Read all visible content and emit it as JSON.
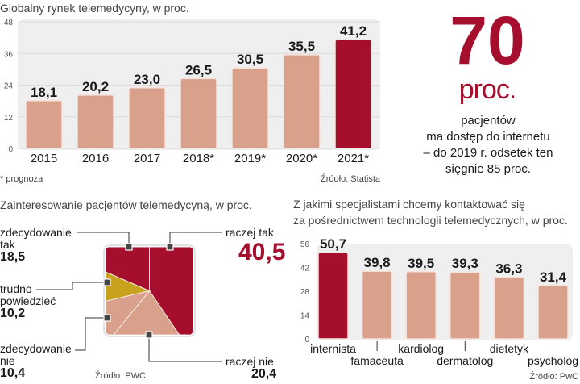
{
  "colors": {
    "bar": "#d9a08c",
    "highlight": "#a50f2d",
    "gold": "#c9a21d",
    "plot_bg": "#efefef",
    "marker": "#444444"
  },
  "chart_data": [
    {
      "type": "bar",
      "title": "Globalny rynek telemedycyny, w proc.",
      "categories": [
        "2015",
        "2016",
        "2017",
        "2018*",
        "2019*",
        "2020*",
        "2021*"
      ],
      "values": [
        18.1,
        20.2,
        23.0,
        26.5,
        30.5,
        35.5,
        41.2
      ],
      "value_labels": [
        "18,1",
        "20,2",
        "23,0",
        "26,5",
        "30,5",
        "35,5",
        "41,2"
      ],
      "highlight_index": 6,
      "yticks": [
        "0",
        "12",
        "24",
        "36",
        "48"
      ],
      "ylim": [
        0,
        48
      ],
      "footnote": "* prognoza",
      "source": "Źródło: Statista"
    },
    {
      "type": "pie",
      "shape": "square",
      "title": "Zainteresowanie pacjentów telemedycyną, w proc.",
      "slices": [
        {
          "name": "raczej tak",
          "value": 40.5,
          "label": "40,5",
          "color": "#a50f2d"
        },
        {
          "name": "raczej nie",
          "value": 20.4,
          "label": "20,4",
          "color": "#d9a08c"
        },
        {
          "name": "zdecydowanie nie",
          "value": 10.4,
          "label": "10,4",
          "color": "#d9a08c"
        },
        {
          "name": "trudno powiedzieć",
          "value": 10.2,
          "label": "10,2",
          "color": "#c9a21d"
        },
        {
          "name": "zdecydowanie tak",
          "value": 18.5,
          "label": "18,5",
          "color": "#a50f2d"
        }
      ],
      "label_lines": {
        "zt": [
          "zdecydowanie",
          "tak"
        ],
        "tp": [
          "trudno",
          "powiedzieć"
        ],
        "zn": [
          "zdecydowanie",
          "nie"
        ]
      },
      "source": "Źródło: PWC"
    },
    {
      "type": "bar",
      "title": [
        "Z jakimi specjalistami chcemy kontaktować się",
        "za pośrednictwem technologii telemedycznych, w proc."
      ],
      "categories": [
        "internista",
        "famaceuta",
        "kardiolog",
        "dermatolog",
        "dietetyk",
        "psycholog"
      ],
      "values": [
        50.7,
        39.8,
        39.5,
        39.3,
        36.3,
        31.4
      ],
      "value_labels": [
        "50,7",
        "39,8",
        "39,5",
        "39,3",
        "36,3",
        "31,4"
      ],
      "highlight_index": 0,
      "yticks": [
        "0",
        "14",
        "28",
        "42",
        "56"
      ],
      "ylim": [
        0,
        56
      ],
      "source": "Źródło: PwC"
    }
  ],
  "callout": {
    "number": "70",
    "unit": "proc.",
    "lines": [
      "pacjentów",
      "ma dostęp do internetu",
      "– do 2019 r. odsetek ten",
      "sięgnie 85 proc."
    ]
  }
}
